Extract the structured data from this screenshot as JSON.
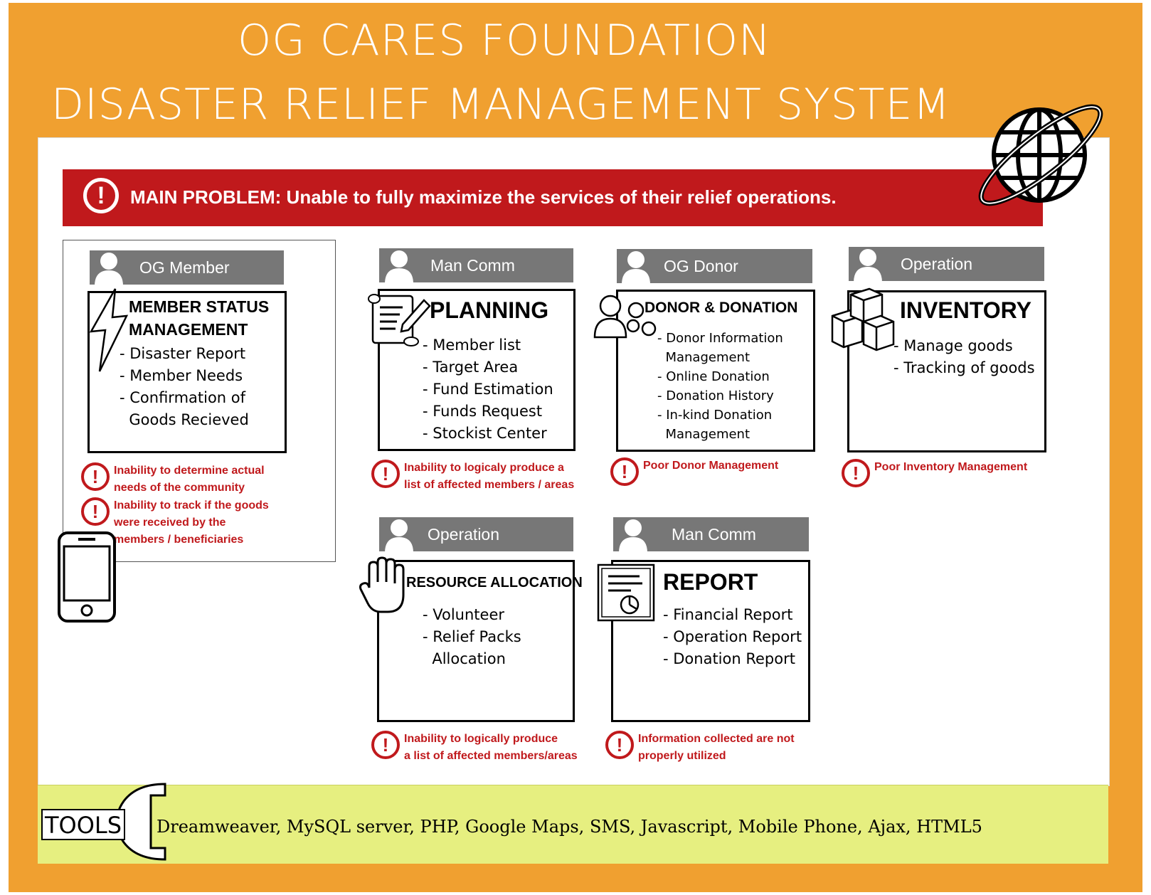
{
  "header": {
    "line1": "OG CARES FOUNDATION",
    "line2": "DISASTER RELIEF MANAGEMENT SYSTEM"
  },
  "main_problem": {
    "label": "MAIN PROBLEM: Unable to fully maximize the services of their relief operations.",
    "icon": "!"
  },
  "modules": {
    "member": {
      "role": "OG Member",
      "title_line1": "MEMBER STATUS",
      "title_line2": "MANAGEMENT",
      "items": [
        "- Disaster Report",
        "- Member Needs",
        "- Confirmation of",
        "  Goods Recieved"
      ],
      "issues": [
        {
          "line1": "Inability to determine actual",
          "line2": "needs of the community"
        },
        {
          "line1": "Inability to track if the goods",
          "line2": "were received by the",
          "line3": "members / beneficiaries"
        }
      ]
    },
    "planning": {
      "role": "Man Comm",
      "title": "PLANNING",
      "items": [
        "- Member list",
        "- Target Area",
        "- Fund Estimation",
        "- Funds Request",
        "- Stockist Center"
      ],
      "issue": {
        "line1": "Inability to logicaly produce a",
        "line2": "list of affected members / areas"
      }
    },
    "donor": {
      "role": "OG Donor",
      "title": "DONOR & DONATION",
      "items": [
        "- Donor Information",
        "  Management",
        "- Online Donation",
        "- Donation History",
        "- In-kind Donation",
        "  Management"
      ],
      "issue": {
        "line1": "Poor Donor Management"
      }
    },
    "inventory": {
      "role": "Operation",
      "title": "INVENTORY",
      "items": [
        "- Manage goods",
        "- Tracking of goods"
      ],
      "issue": {
        "line1": "Poor Inventory Management"
      }
    },
    "resource": {
      "role": "Operation",
      "title": "RESOURCE ALLOCATION",
      "items": [
        "- Volunteer",
        "- Relief Packs",
        "  Allocation"
      ],
      "issue": {
        "line1": "Inability to logically produce",
        "line2": "a list of affected members/areas"
      }
    },
    "report": {
      "role": "Man Comm",
      "title": "REPORT",
      "items": [
        "- Financial Report",
        "- Operation Report",
        "- Donation Report"
      ],
      "issue": {
        "line1": "Information collected are not",
        "line2": "properly utilized"
      }
    }
  },
  "tools": {
    "label": "TOOLS",
    "list": "Dreamweaver, MySQL server, PHP, Google Maps, SMS, Javascript, Mobile Phone, Ajax, HTML5"
  },
  "icons": [
    "globe-icon",
    "alert-icon",
    "person-icon",
    "lightning-icon",
    "scroll-icon",
    "people-icon",
    "boxes-icon",
    "hand-icon",
    "document-icon",
    "phone-icon",
    "wrench-icon"
  ],
  "colors": {
    "frame": "#f0a030",
    "problem": "#c0191c",
    "role_bar": "#777777",
    "tools_bar": "#e6ef80"
  }
}
